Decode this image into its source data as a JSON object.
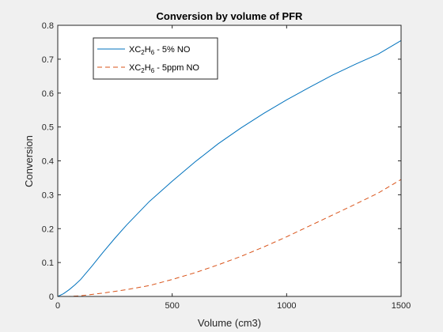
{
  "chart_data": {
    "type": "line",
    "title": "Conversion by volume of PFR",
    "xlabel": "Volume (cm3)",
    "ylabel": "Conversion",
    "xlim": [
      0,
      1500
    ],
    "ylim": [
      0,
      0.8
    ],
    "xticks": [
      0,
      500,
      1000,
      1500
    ],
    "yticks": [
      0,
      0.1,
      0.2,
      0.3,
      0.4,
      0.5,
      0.6,
      0.7,
      0.8
    ],
    "xtick_labels": [
      "0",
      "500",
      "1000",
      "1500"
    ],
    "ytick_labels": [
      "0",
      "0.1",
      "0.2",
      "0.3",
      "0.4",
      "0.5",
      "0.6",
      "0.7",
      "0.8"
    ],
    "grid": false,
    "legend_position": "top-left",
    "series": [
      {
        "label_main": "XC",
        "label_sub1": "2",
        "label_mid": "H",
        "label_sub2": "6",
        "label_tail": " - 5% NO",
        "color": "#0072bd",
        "style": "solid",
        "x": [
          0,
          25,
          50,
          75,
          100,
          150,
          200,
          250,
          300,
          350,
          400,
          450,
          500,
          600,
          700,
          800,
          900,
          1000,
          1100,
          1200,
          1300,
          1400,
          1500
        ],
        "y": [
          0,
          0.008,
          0.02,
          0.034,
          0.05,
          0.09,
          0.132,
          0.172,
          0.21,
          0.245,
          0.28,
          0.31,
          0.34,
          0.397,
          0.45,
          0.497,
          0.54,
          0.58,
          0.617,
          0.653,
          0.685,
          0.715,
          0.755
        ]
      },
      {
        "label_main": "XC",
        "label_sub1": "2",
        "label_mid": "H",
        "label_sub2": "6",
        "label_tail": " - 5ppm NO",
        "color": "#d95319",
        "style": "dashed",
        "x": [
          0,
          50,
          100,
          200,
          300,
          400,
          500,
          600,
          700,
          800,
          900,
          1000,
          1100,
          1200,
          1300,
          1400,
          1500
        ],
        "y": [
          0,
          0,
          0.002,
          0.01,
          0.02,
          0.032,
          0.05,
          0.07,
          0.093,
          0.118,
          0.146,
          0.176,
          0.208,
          0.24,
          0.272,
          0.305,
          0.345
        ]
      }
    ]
  }
}
